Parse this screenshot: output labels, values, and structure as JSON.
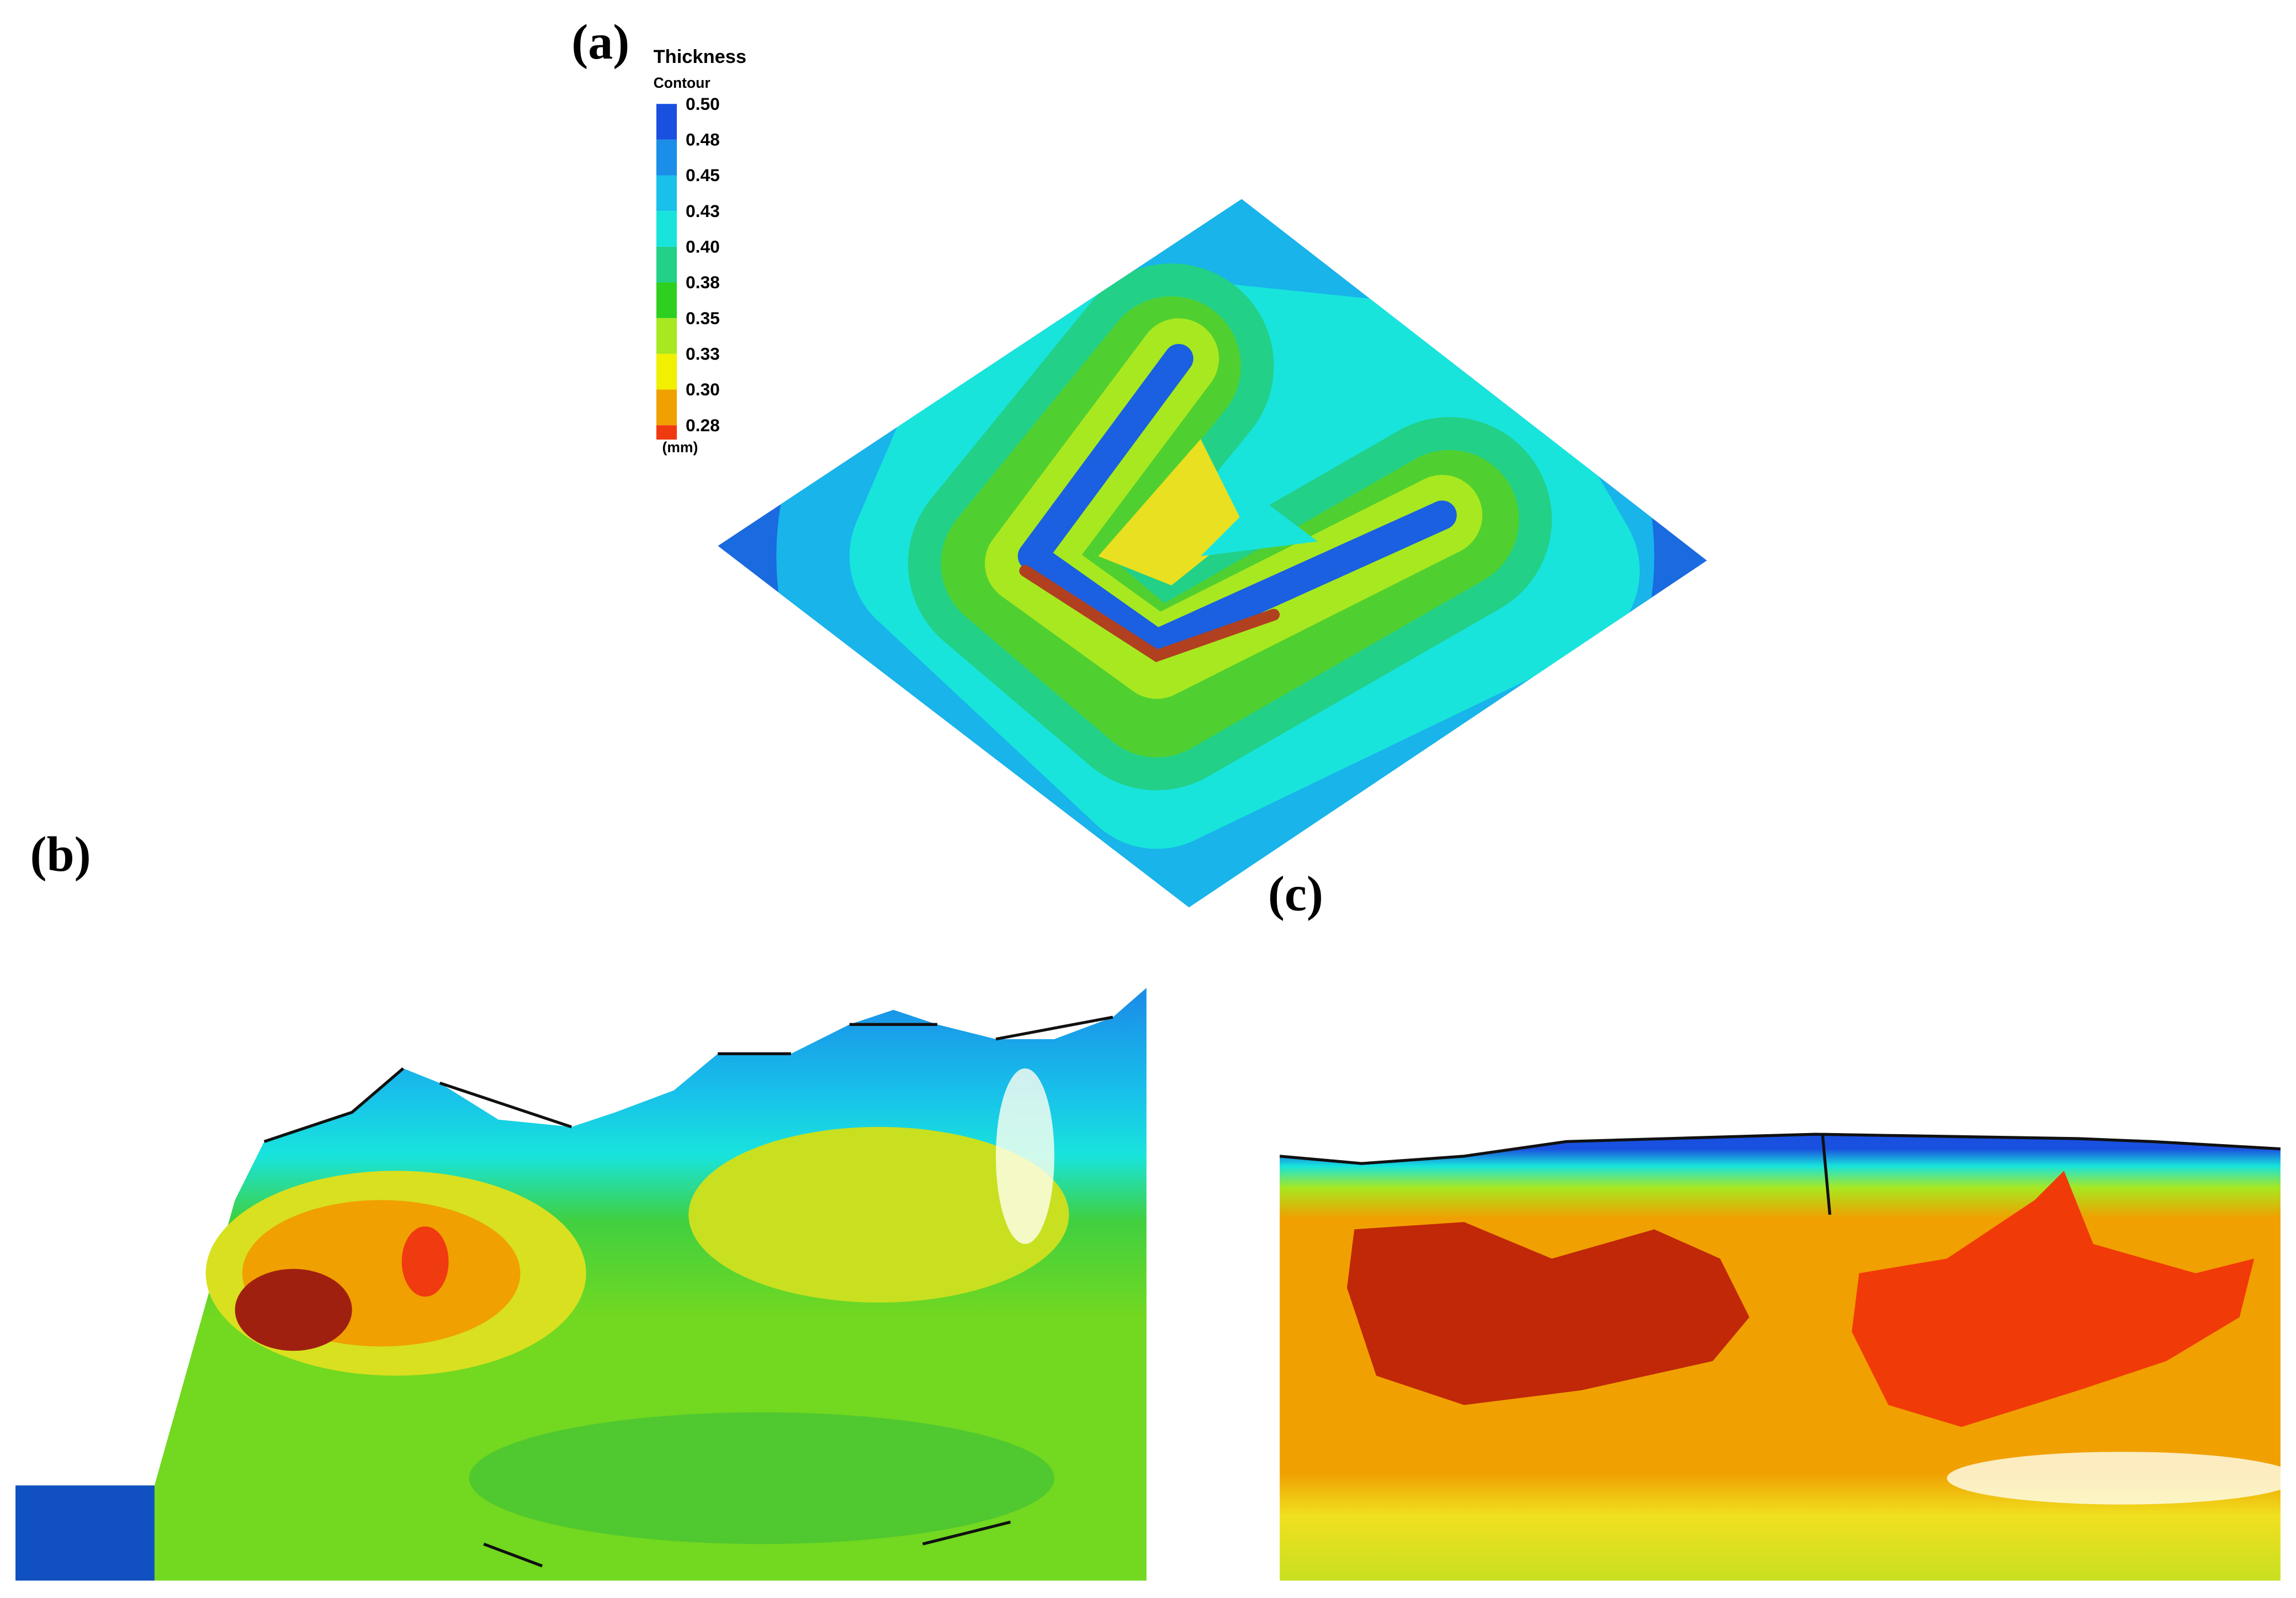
{
  "panels": {
    "a": "(a)",
    "b": "(b)",
    "c": "(c)"
  },
  "legend": {
    "title": "Thickness",
    "subtitle": "Contour",
    "unit": "(mm)",
    "entries": [
      {
        "label": "0.50",
        "color": "#1a50e0"
      },
      {
        "label": "0.48",
        "color": "#1a8ee8"
      },
      {
        "label": "0.45",
        "color": "#18c0ea"
      },
      {
        "label": "0.43",
        "color": "#18e4dc"
      },
      {
        "label": "0.40",
        "color": "#22d088"
      },
      {
        "label": "0.38",
        "color": "#2ed020"
      },
      {
        "label": "0.35",
        "color": "#a8e820"
      },
      {
        "label": "0.33",
        "color": "#f0f000"
      },
      {
        "label": "0.30",
        "color": "#f0a000"
      },
      {
        "label": "0.28",
        "color": "#f03a10"
      }
    ]
  }
}
